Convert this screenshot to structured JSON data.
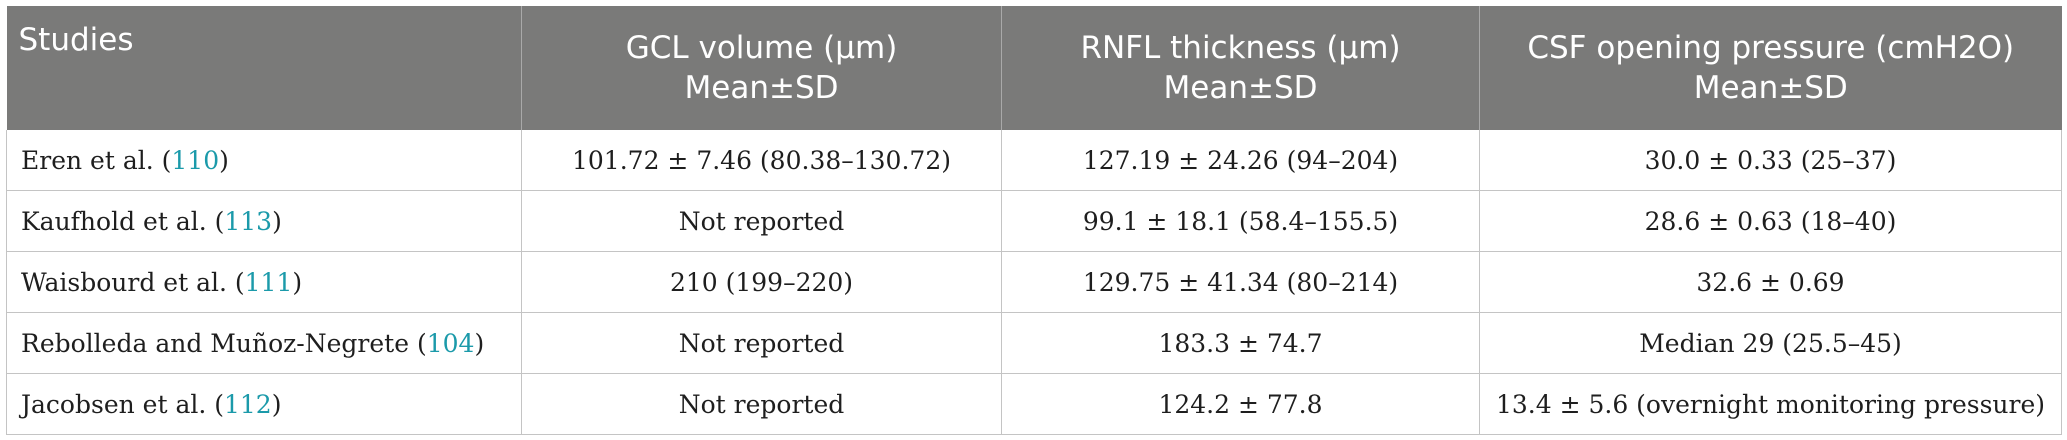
{
  "table": {
    "headers": [
      {
        "line1": "Studies",
        "line2": ""
      },
      {
        "line1": "GCL volume (μm)",
        "line2": "Mean±SD"
      },
      {
        "line1": "RNFL thickness (μm)",
        "line2": "Mean±SD"
      },
      {
        "line1": "CSF opening pressure (cmH2O)",
        "line2": "Mean±SD"
      }
    ],
    "rows": [
      {
        "study": "Eren et al.",
        "ref": "110",
        "gcl": "101.72 ± 7.46 (80.38–130.72)",
        "rnfl": "127.19 ± 24.26 (94–204)",
        "csf": "30.0 ± 0.33 (25–37)"
      },
      {
        "study": "Kaufhold et al.",
        "ref": "113",
        "gcl": "Not reported",
        "rnfl": "99.1 ± 18.1 (58.4–155.5)",
        "csf": "28.6 ± 0.63 (18–40)"
      },
      {
        "study": "Waisbourd et al.",
        "ref": "111",
        "gcl": "210 (199–220)",
        "rnfl": "129.75 ± 41.34 (80–214)",
        "csf": "32.6 ± 0.69"
      },
      {
        "study": "Rebolleda and Muñoz-Negrete",
        "ref": "104",
        "gcl": "Not reported",
        "rnfl": "183.3 ± 74.7",
        "csf": "Median 29 (25.5–45)"
      },
      {
        "study": "Jacobsen et al.",
        "ref": "112",
        "gcl": "Not reported",
        "rnfl": "124.2 ± 77.8",
        "csf": "13.4 ± 5.6 (overnight monitoring pressure)"
      }
    ]
  }
}
